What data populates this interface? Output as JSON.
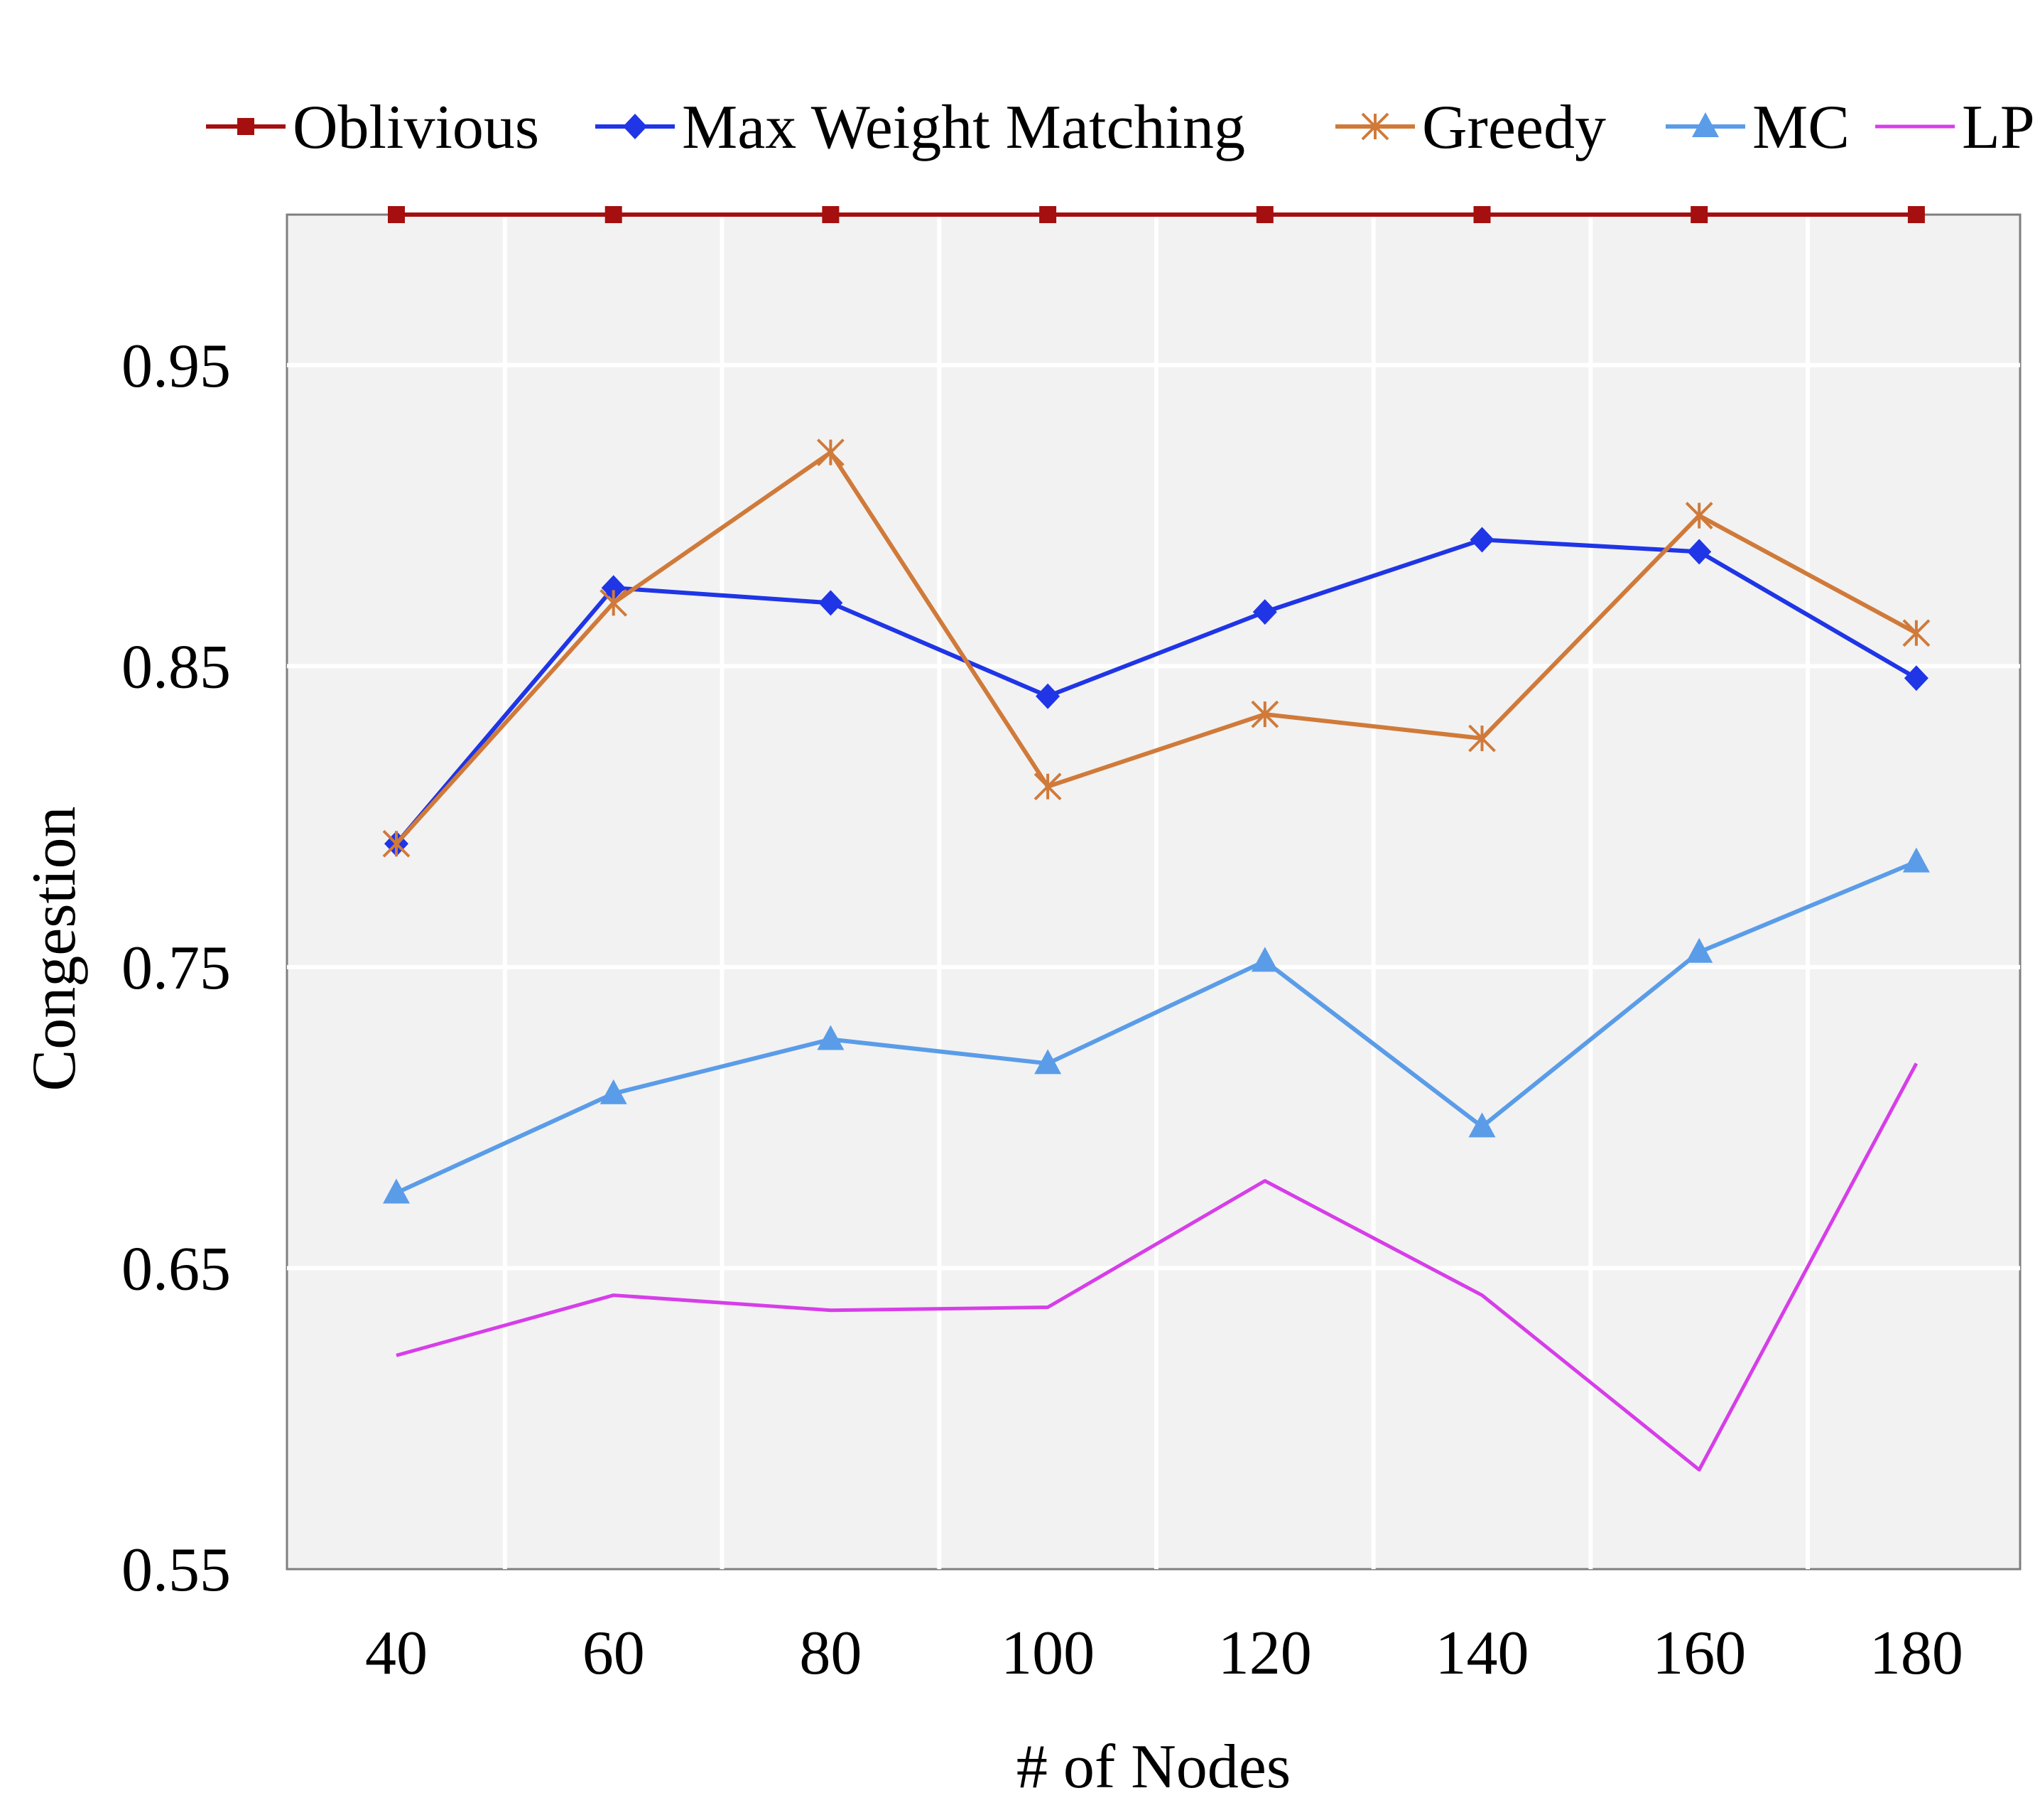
{
  "chart_data": {
    "type": "line",
    "title": "",
    "xlabel": "# of Nodes",
    "ylabel": "Congestion",
    "categories": [
      "40",
      "60",
      "80",
      "100",
      "120",
      "140",
      "160",
      "180"
    ],
    "x": [
      40,
      60,
      80,
      100,
      120,
      140,
      160,
      180
    ],
    "ylim": [
      0.55,
      1.0
    ],
    "yticks": [
      "0.55",
      "0.65",
      "0.75",
      "0.85",
      "0.95"
    ],
    "grid": true,
    "legend_position": "top",
    "background": "#f2f2f2",
    "series": [
      {
        "name": "Oblivious",
        "color": "#a50f0f",
        "marker": "square",
        "values": [
          1.0,
          1.0,
          1.0,
          1.0,
          1.0,
          1.0,
          1.0,
          1.0
        ]
      },
      {
        "name": "Max Weight Matching",
        "color": "#1f35e6",
        "marker": "diamond",
        "values": [
          0.791,
          0.876,
          0.871,
          0.84,
          0.868,
          0.892,
          0.888,
          0.846
        ]
      },
      {
        "name": "Greedy",
        "color": "#d07a3a",
        "marker": "star",
        "values": [
          0.791,
          0.871,
          0.921,
          0.81,
          0.834,
          0.826,
          0.9,
          0.861
        ]
      },
      {
        "name": "MC",
        "color": "#5a9ce8",
        "marker": "triangle",
        "values": [
          0.675,
          0.708,
          0.726,
          0.718,
          0.752,
          0.697,
          0.755,
          0.785
        ]
      },
      {
        "name": "LP",
        "color": "#d63ee8",
        "marker": "none",
        "values": [
          0.621,
          0.641,
          0.636,
          0.637,
          0.679,
          0.641,
          0.583,
          0.718
        ]
      }
    ]
  }
}
